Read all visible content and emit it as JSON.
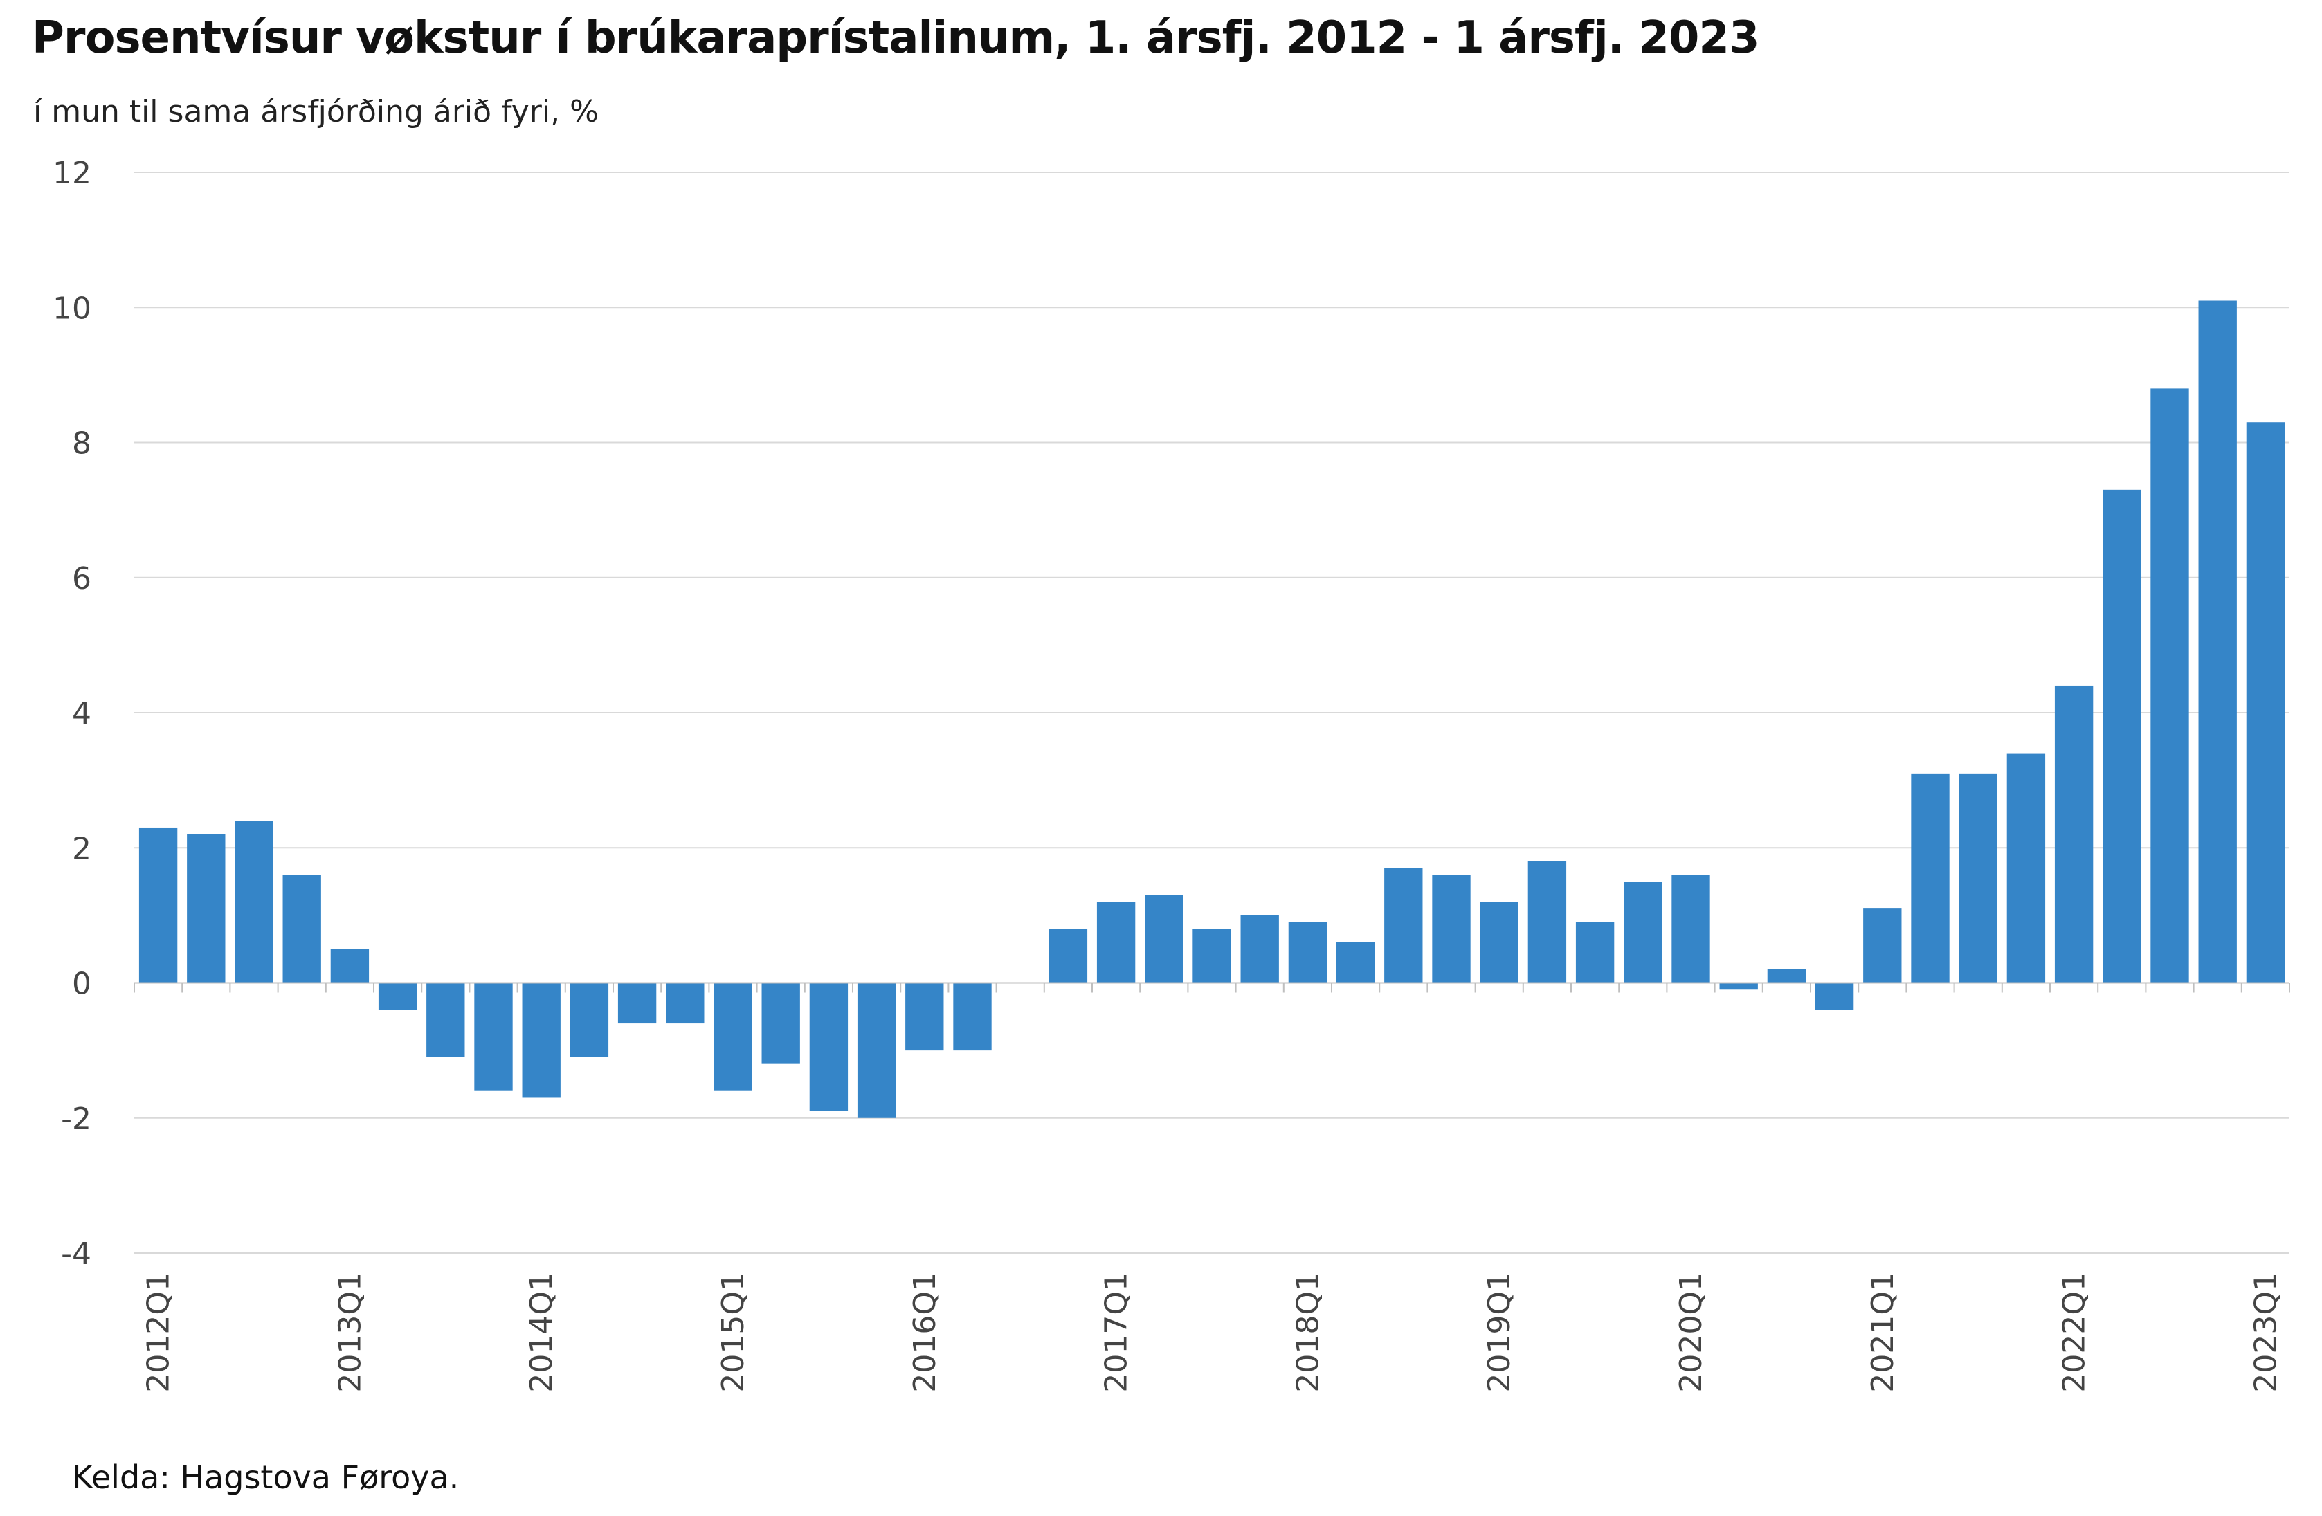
{
  "chart_data": {
    "type": "bar",
    "title": "Prosentvísur vøkstur í brúkaraprístalinum, 1. ársfj. 2012 - 1 ársfj. 2023",
    "subtitle": "í mun til sama ársfjórðing árið fyri, %",
    "source": "Kelda: Hagstova Føroya.",
    "ylim": [
      -4,
      12
    ],
    "yticks": [
      "12",
      "10",
      "8",
      "6",
      "4",
      "2",
      "0",
      "-2",
      "-4"
    ],
    "grid": true,
    "legend": "none",
    "bar_color": "#3585c8",
    "grid_color": "#d9d9d9",
    "categories": [
      "2012Q1",
      "2012Q2",
      "2012Q3",
      "2012Q4",
      "2013Q1",
      "2013Q2",
      "2013Q3",
      "2013Q4",
      "2014Q1",
      "2014Q2",
      "2014Q3",
      "2014Q4",
      "2015Q1",
      "2015Q2",
      "2015Q3",
      "2015Q4",
      "2016Q1",
      "2016Q2",
      "2016Q3",
      "2016Q4",
      "2017Q1",
      "2017Q2",
      "2017Q3",
      "2017Q4",
      "2018Q1",
      "2018Q2",
      "2018Q3",
      "2018Q4",
      "2019Q1",
      "2019Q2",
      "2019Q3",
      "2019Q4",
      "2020Q1",
      "2020Q2",
      "2020Q3",
      "2020Q4",
      "2021Q1",
      "2021Q2",
      "2021Q3",
      "2021Q4",
      "2022Q1",
      "2022Q2",
      "2022Q3",
      "2022Q4",
      "2023Q1"
    ],
    "xtick_labels": [
      "2012Q1",
      "2013Q1",
      "2014Q1",
      "2015Q1",
      "2016Q1",
      "2017Q1",
      "2018Q1",
      "2019Q1",
      "2020Q1",
      "2021Q1",
      "2022Q1",
      "2023Q1"
    ],
    "values": [
      2.3,
      2.2,
      2.4,
      1.6,
      0.5,
      -0.4,
      -1.1,
      -1.6,
      -1.7,
      -1.1,
      -0.6,
      -0.6,
      -1.6,
      -1.2,
      -1.9,
      -2.0,
      -1.0,
      -1.0,
      0.0,
      0.8,
      1.2,
      1.3,
      0.8,
      1.0,
      0.9,
      0.6,
      1.7,
      1.6,
      1.2,
      1.8,
      0.9,
      1.5,
      1.6,
      -0.1,
      0.2,
      -0.4,
      1.1,
      3.1,
      3.1,
      3.4,
      4.4,
      7.3,
      8.8,
      10.1,
      8.3
    ]
  }
}
